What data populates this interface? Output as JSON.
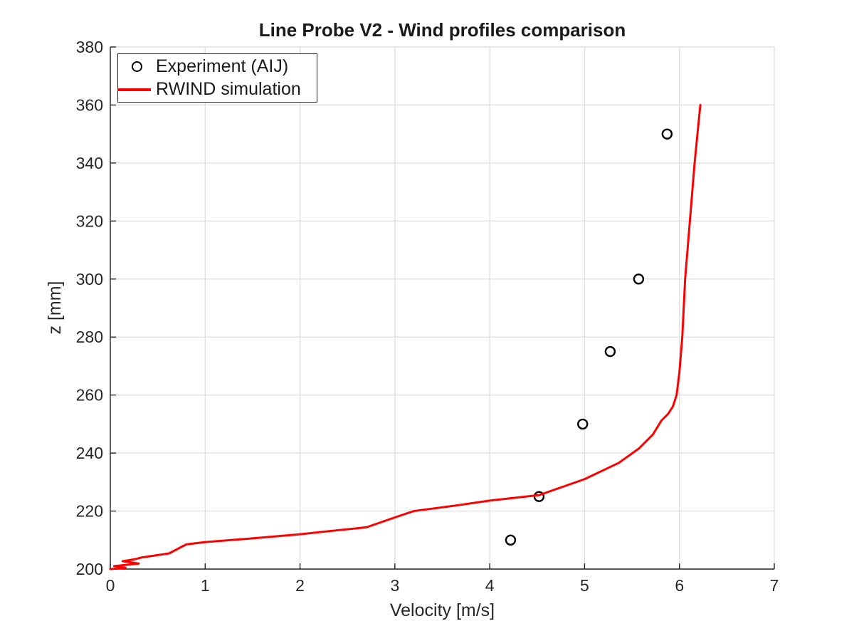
{
  "chart_data": {
    "type": "line+scatter",
    "title": "Line Probe V2 - Wind profiles comparison",
    "xlabel": "Velocity [m/s]",
    "ylabel": "z [mm]",
    "xlim": [
      0,
      7
    ],
    "ylim": [
      200,
      380
    ],
    "x_ticks": [
      0,
      1,
      2,
      3,
      4,
      5,
      6,
      7
    ],
    "y_ticks": [
      200,
      220,
      240,
      260,
      280,
      300,
      320,
      340,
      360,
      380
    ],
    "grid": true,
    "legend_position": "top-left",
    "colors": {
      "grid": "#e0e0e0",
      "axis": "#262626",
      "experiment": "#000000",
      "simulation": "#ff0000"
    },
    "series": [
      {
        "name": "Experiment (AIJ)",
        "type": "scatter",
        "marker": "open-circle",
        "color": "#000000",
        "points": [
          [
            4.22,
            210
          ],
          [
            4.52,
            225
          ],
          [
            4.98,
            250
          ],
          [
            5.27,
            275
          ],
          [
            5.57,
            300
          ],
          [
            5.87,
            350
          ]
        ]
      },
      {
        "name": "RWIND simulation",
        "type": "line",
        "color": "#ff0000",
        "line_width": 3,
        "points": [
          [
            0.0,
            200.0
          ],
          [
            0.16,
            200.4
          ],
          [
            0.04,
            201.0
          ],
          [
            0.3,
            201.9
          ],
          [
            0.13,
            202.7
          ],
          [
            0.26,
            203.4
          ],
          [
            0.33,
            204.0
          ],
          [
            0.62,
            205.4
          ],
          [
            0.8,
            208.5
          ],
          [
            1.0,
            209.3
          ],
          [
            1.5,
            210.6
          ],
          [
            2.0,
            212.0
          ],
          [
            2.4,
            213.4
          ],
          [
            2.7,
            214.4
          ],
          [
            3.0,
            217.8
          ],
          [
            3.2,
            220.0
          ],
          [
            3.64,
            221.9
          ],
          [
            4.0,
            223.6
          ],
          [
            4.52,
            225.5
          ],
          [
            5.0,
            231.0
          ],
          [
            5.36,
            236.6
          ],
          [
            5.57,
            241.5
          ],
          [
            5.72,
            246.4
          ],
          [
            5.81,
            251.2
          ],
          [
            5.88,
            253.5
          ],
          [
            5.93,
            256.0
          ],
          [
            5.97,
            260.0
          ],
          [
            6.0,
            268.0
          ],
          [
            6.03,
            280.0
          ],
          [
            6.06,
            300.0
          ],
          [
            6.11,
            320.0
          ],
          [
            6.16,
            340.0
          ],
          [
            6.22,
            360.0
          ]
        ]
      }
    ]
  }
}
